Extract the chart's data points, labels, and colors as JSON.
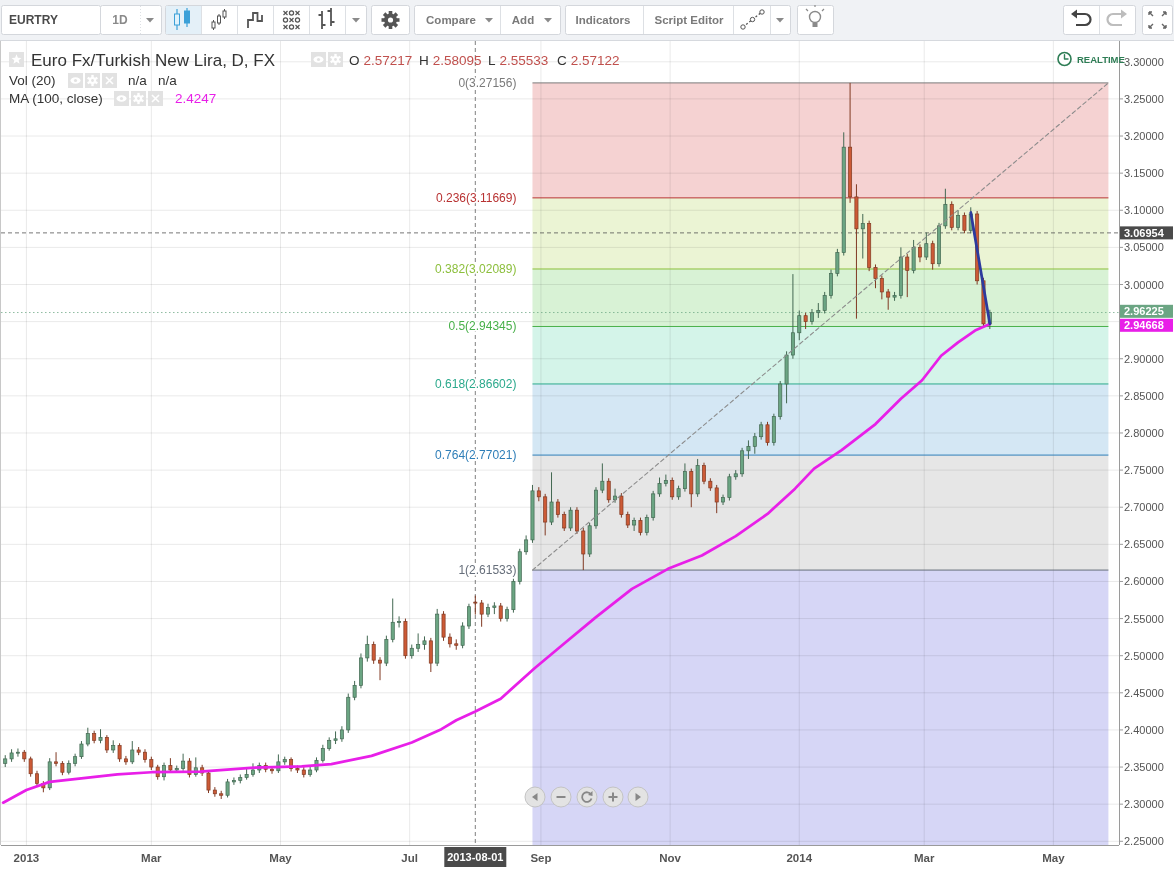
{
  "chart_data": {
    "type": "candlestick",
    "title": "Euro Fx/Turkish New Lira, D, FX",
    "x": [
      "2012-12-22",
      "2012-12-25",
      "2012-12-28",
      "2012-12-31",
      "2013-01-03",
      "2013-01-06",
      "2013-01-09",
      "2013-01-12",
      "2013-01-15",
      "2013-01-18",
      "2013-01-21",
      "2013-01-24",
      "2013-01-27",
      "2013-01-30",
      "2013-02-02",
      "2013-02-05",
      "2013-02-08",
      "2013-02-11",
      "2013-02-14",
      "2013-02-17",
      "2013-02-20",
      "2013-02-23",
      "2013-02-26",
      "2013-03-01",
      "2013-03-04",
      "2013-03-07",
      "2013-03-10",
      "2013-03-13",
      "2013-03-16",
      "2013-03-19",
      "2013-03-22",
      "2013-03-25",
      "2013-03-28",
      "2013-03-31",
      "2013-04-03",
      "2013-04-06",
      "2013-04-09",
      "2013-04-12",
      "2013-04-15",
      "2013-04-18",
      "2013-04-21",
      "2013-04-24",
      "2013-04-27",
      "2013-04-30",
      "2013-05-03",
      "2013-05-06",
      "2013-05-09",
      "2013-05-12",
      "2013-05-15",
      "2013-05-18",
      "2013-05-21",
      "2013-05-24",
      "2013-05-27",
      "2013-05-30",
      "2013-06-02",
      "2013-06-05",
      "2013-06-08",
      "2013-06-11",
      "2013-06-14",
      "2013-06-17",
      "2013-06-20",
      "2013-06-23",
      "2013-06-26",
      "2013-06-29",
      "2013-07-02",
      "2013-07-05",
      "2013-07-08",
      "2013-07-11",
      "2013-07-14",
      "2013-07-17",
      "2013-07-20",
      "2013-07-23",
      "2013-07-26",
      "2013-07-29",
      "2013-08-01",
      "2013-08-04",
      "2013-08-07",
      "2013-08-10",
      "2013-08-13",
      "2013-08-16",
      "2013-08-19",
      "2013-08-22",
      "2013-08-25",
      "2013-08-28",
      "2013-08-31",
      "2013-09-03",
      "2013-09-06",
      "2013-09-09",
      "2013-09-12",
      "2013-09-15",
      "2013-09-18",
      "2013-09-21",
      "2013-09-24",
      "2013-09-27",
      "2013-09-30",
      "2013-10-03",
      "2013-10-06",
      "2013-10-09",
      "2013-10-12",
      "2013-10-15",
      "2013-10-18",
      "2013-10-21",
      "2013-10-24",
      "2013-10-27",
      "2013-10-30",
      "2013-11-02",
      "2013-11-05",
      "2013-11-08",
      "2013-11-11",
      "2013-11-14",
      "2013-11-17",
      "2013-11-20",
      "2013-11-23",
      "2013-11-26",
      "2013-11-29",
      "2013-12-02",
      "2013-12-05",
      "2013-12-08",
      "2013-12-11",
      "2013-12-14",
      "2013-12-17",
      "2013-12-20",
      "2013-12-23",
      "2013-12-26",
      "2013-12-29",
      "2014-01-01",
      "2014-01-04",
      "2014-01-07",
      "2014-01-10",
      "2014-01-13",
      "2014-01-16",
      "2014-01-19",
      "2014-01-22",
      "2014-01-25",
      "2014-01-28",
      "2014-01-31",
      "2014-02-03",
      "2014-02-06",
      "2014-02-09",
      "2014-02-12",
      "2014-02-15",
      "2014-02-18",
      "2014-02-21",
      "2014-02-24",
      "2014-02-27",
      "2014-03-02",
      "2014-03-05",
      "2014-03-08",
      "2014-03-11",
      "2014-03-14",
      "2014-03-17",
      "2014-03-20",
      "2014-03-23",
      "2014-03-26",
      "2014-03-29",
      "2014-04-01"
    ],
    "ohlc": [
      [
        2.355,
        2.366,
        2.35,
        2.361
      ],
      [
        2.361,
        2.374,
        2.357,
        2.369
      ],
      [
        2.369,
        2.375,
        2.364,
        2.37
      ],
      [
        2.37,
        2.373,
        2.357,
        2.361
      ],
      [
        2.361,
        2.364,
        2.337,
        2.341
      ],
      [
        2.341,
        2.345,
        2.324,
        2.328
      ],
      [
        2.328,
        2.331,
        2.316,
        2.322
      ],
      [
        2.322,
        2.362,
        2.319,
        2.357
      ],
      [
        2.357,
        2.37,
        2.351,
        2.355
      ],
      [
        2.355,
        2.358,
        2.339,
        2.343
      ],
      [
        2.343,
        2.359,
        2.34,
        2.355
      ],
      [
        2.355,
        2.368,
        2.351,
        2.364
      ],
      [
        2.364,
        2.385,
        2.361,
        2.381
      ],
      [
        2.381,
        2.403,
        2.378,
        2.395
      ],
      [
        2.395,
        2.399,
        2.382,
        2.386
      ],
      [
        2.386,
        2.401,
        2.382,
        2.39
      ],
      [
        2.39,
        2.393,
        2.369,
        2.373
      ],
      [
        2.373,
        2.386,
        2.369,
        2.379
      ],
      [
        2.379,
        2.382,
        2.357,
        2.361
      ],
      [
        2.361,
        2.365,
        2.353,
        2.357
      ],
      [
        2.357,
        2.385,
        2.354,
        2.373
      ],
      [
        2.373,
        2.377,
        2.366,
        2.37
      ],
      [
        2.37,
        2.374,
        2.356,
        2.36
      ],
      [
        2.36,
        2.364,
        2.346,
        2.35
      ],
      [
        2.35,
        2.353,
        2.333,
        2.337
      ],
      [
        2.337,
        2.356,
        2.332,
        2.352
      ],
      [
        2.352,
        2.362,
        2.342,
        2.346
      ],
      [
        2.346,
        2.352,
        2.343,
        2.348
      ],
      [
        2.348,
        2.368,
        2.345,
        2.358
      ],
      [
        2.358,
        2.362,
        2.336,
        2.34
      ],
      [
        2.34,
        2.363,
        2.337,
        2.349
      ],
      [
        2.349,
        2.353,
        2.338,
        2.342
      ],
      [
        2.342,
        2.345,
        2.315,
        2.319
      ],
      [
        2.319,
        2.323,
        2.31,
        2.314
      ],
      [
        2.314,
        2.318,
        2.307,
        2.312
      ],
      [
        2.312,
        2.334,
        2.309,
        2.33
      ],
      [
        2.33,
        2.336,
        2.326,
        2.332
      ],
      [
        2.332,
        2.34,
        2.328,
        2.336
      ],
      [
        2.336,
        2.35,
        2.333,
        2.34
      ],
      [
        2.34,
        2.355,
        2.337,
        2.346
      ],
      [
        2.346,
        2.356,
        2.342,
        2.352
      ],
      [
        2.352,
        2.356,
        2.343,
        2.347
      ],
      [
        2.347,
        2.35,
        2.341,
        2.345
      ],
      [
        2.345,
        2.367,
        2.342,
        2.357
      ],
      [
        2.357,
        2.364,
        2.353,
        2.36
      ],
      [
        2.36,
        2.363,
        2.344,
        2.348
      ],
      [
        2.348,
        2.352,
        2.342,
        2.346
      ],
      [
        2.346,
        2.35,
        2.336,
        2.34
      ],
      [
        2.34,
        2.35,
        2.337,
        2.346
      ],
      [
        2.346,
        2.363,
        2.343,
        2.359
      ],
      [
        2.359,
        2.38,
        2.356,
        2.375
      ],
      [
        2.375,
        2.39,
        2.372,
        2.386
      ],
      [
        2.386,
        2.398,
        2.381,
        2.388
      ],
      [
        2.388,
        2.405,
        2.384,
        2.4
      ],
      [
        2.4,
        2.449,
        2.396,
        2.444
      ],
      [
        2.444,
        2.466,
        2.44,
        2.46
      ],
      [
        2.46,
        2.503,
        2.456,
        2.497
      ],
      [
        2.497,
        2.527,
        2.492,
        2.515
      ],
      [
        2.515,
        2.519,
        2.489,
        2.494
      ],
      [
        2.494,
        2.498,
        2.467,
        2.49
      ],
      [
        2.49,
        2.527,
        2.486,
        2.522
      ],
      [
        2.522,
        2.577,
        2.518,
        2.545
      ],
      [
        2.545,
        2.553,
        2.538,
        2.546
      ],
      [
        2.546,
        2.55,
        2.496,
        2.5
      ],
      [
        2.5,
        2.515,
        2.496,
        2.51
      ],
      [
        2.51,
        2.53,
        2.505,
        2.515
      ],
      [
        2.515,
        2.526,
        2.508,
        2.52
      ],
      [
        2.52,
        2.524,
        2.478,
        2.49
      ],
      [
        2.49,
        2.563,
        2.486,
        2.556
      ],
      [
        2.556,
        2.56,
        2.52,
        2.525
      ],
      [
        2.525,
        2.53,
        2.511,
        2.516
      ],
      [
        2.516,
        2.522,
        2.508,
        2.514
      ],
      [
        2.514,
        2.545,
        2.51,
        2.54
      ],
      [
        2.54,
        2.57,
        2.536,
        2.566
      ],
      [
        2.57217,
        2.58095,
        2.55533,
        2.57122
      ],
      [
        2.571,
        2.575,
        2.539,
        2.556
      ],
      [
        2.556,
        2.57,
        2.552,
        2.565
      ],
      [
        2.565,
        2.572,
        2.556,
        2.567
      ],
      [
        2.567,
        2.571,
        2.546,
        2.55
      ],
      [
        2.55,
        2.566,
        2.546,
        2.562
      ],
      [
        2.562,
        2.604,
        2.558,
        2.6
      ],
      [
        2.6,
        2.644,
        2.596,
        2.64
      ],
      [
        2.64,
        2.662,
        2.636,
        2.656
      ],
      [
        2.656,
        2.73,
        2.652,
        2.722
      ],
      [
        2.722,
        2.727,
        2.708,
        2.714
      ],
      [
        2.714,
        2.718,
        2.662,
        2.68
      ],
      [
        2.68,
        2.747,
        2.676,
        2.707
      ],
      [
        2.707,
        2.711,
        2.686,
        2.69
      ],
      [
        2.69,
        2.694,
        2.668,
        2.672
      ],
      [
        2.672,
        2.7,
        2.668,
        2.696
      ],
      [
        2.696,
        2.7,
        2.664,
        2.668
      ],
      [
        2.668,
        2.672,
        2.61533,
        2.637
      ],
      [
        2.637,
        2.679,
        2.633,
        2.675
      ],
      [
        2.675,
        2.727,
        2.671,
        2.723
      ],
      [
        2.723,
        2.759,
        2.719,
        2.735
      ],
      [
        2.735,
        2.739,
        2.706,
        2.71
      ],
      [
        2.71,
        2.725,
        2.706,
        2.715
      ],
      [
        2.715,
        2.719,
        2.686,
        2.69
      ],
      [
        2.69,
        2.694,
        2.672,
        2.676
      ],
      [
        2.676,
        2.686,
        2.668,
        2.682
      ],
      [
        2.682,
        2.686,
        2.662,
        2.666
      ],
      [
        2.666,
        2.69,
        2.662,
        2.686
      ],
      [
        2.686,
        2.722,
        2.682,
        2.718
      ],
      [
        2.718,
        2.74,
        2.714,
        2.732
      ],
      [
        2.732,
        2.744,
        2.728,
        2.736
      ],
      [
        2.736,
        2.74,
        2.71,
        2.714
      ],
      [
        2.714,
        2.729,
        2.71,
        2.725
      ],
      [
        2.725,
        2.759,
        2.721,
        2.748
      ],
      [
        2.748,
        2.752,
        2.7,
        2.718
      ],
      [
        2.718,
        2.765,
        2.714,
        2.756
      ],
      [
        2.756,
        2.76,
        2.731,
        2.735
      ],
      [
        2.735,
        2.739,
        2.722,
        2.726
      ],
      [
        2.726,
        2.73,
        2.692,
        2.707
      ],
      [
        2.707,
        2.717,
        2.703,
        2.713
      ],
      [
        2.713,
        2.745,
        2.709,
        2.741
      ],
      [
        2.741,
        2.75,
        2.737,
        2.745
      ],
      [
        2.745,
        2.78,
        2.741,
        2.776
      ],
      [
        2.776,
        2.79,
        2.765,
        2.782
      ],
      [
        2.782,
        2.8,
        2.772,
        2.795
      ],
      [
        2.795,
        2.815,
        2.791,
        2.811
      ],
      [
        2.811,
        2.815,
        2.783,
        2.787
      ],
      [
        2.787,
        2.826,
        2.783,
        2.822
      ],
      [
        2.822,
        2.87,
        2.818,
        2.866
      ],
      [
        2.866,
        2.91,
        2.84,
        2.905
      ],
      [
        2.905,
        3.014,
        2.9,
        2.935
      ],
      [
        2.935,
        2.965,
        2.925,
        2.958
      ],
      [
        2.958,
        2.962,
        2.94,
        2.95
      ],
      [
        2.95,
        2.967,
        2.946,
        2.962
      ],
      [
        2.962,
        2.975,
        2.955,
        2.965
      ],
      [
        2.965,
        2.99,
        2.961,
        2.985
      ],
      [
        2.985,
        3.02,
        2.981,
        3.015
      ],
      [
        3.015,
        3.048,
        3.011,
        3.043
      ],
      [
        3.043,
        3.205,
        3.039,
        3.185
      ],
      [
        3.185,
        3.27156,
        3.11,
        3.118
      ],
      [
        3.118,
        3.135,
        2.954,
        3.075
      ],
      [
        3.075,
        3.095,
        3.035,
        3.082
      ],
      [
        3.082,
        3.086,
        3.018,
        3.023
      ],
      [
        3.023,
        3.027,
        2.995,
        3.008
      ],
      [
        3.008,
        3.012,
        2.98,
        2.99
      ],
      [
        2.99,
        2.994,
        2.966,
        2.983
      ],
      [
        2.983,
        2.99,
        2.978,
        2.985
      ],
      [
        2.985,
        3.05,
        2.981,
        3.037
      ],
      [
        3.037,
        3.041,
        2.983,
        3.019
      ],
      [
        3.019,
        3.06,
        3.015,
        3.05
      ],
      [
        3.05,
        3.054,
        3.03,
        3.037
      ],
      [
        3.037,
        3.07,
        3.033,
        3.055
      ],
      [
        3.055,
        3.059,
        3.02,
        3.028
      ],
      [
        3.028,
        3.083,
        3.024,
        3.079
      ],
      [
        3.079,
        3.129,
        3.075,
        3.108
      ],
      [
        3.108,
        3.112,
        3.073,
        3.077
      ],
      [
        3.077,
        3.1,
        3.073,
        3.093
      ],
      [
        3.093,
        3.097,
        3.069,
        3.073
      ],
      [
        3.073,
        3.104,
        3.069,
        3.095
      ],
      [
        3.095,
        3.099,
        3.0,
        3.005
      ],
      [
        3.005,
        3.009,
        2.943,
        2.947
      ],
      [
        2.947,
        2.966,
        2.94,
        2.96225
      ]
    ],
    "colors": [
      "#6ba583",
      "#6ba583",
      "#6ba583",
      "#cc5a36",
      "#cc5a36",
      "#cc5a36",
      "#cc5a36",
      "#6ba583",
      "#cc5a36",
      "#cc5a36",
      "#6ba583",
      "#6ba583",
      "#6ba583",
      "#6ba583",
      "#cc5a36",
      "#6ba583",
      "#cc5a36",
      "#6ba583",
      "#cc5a36",
      "#cc5a36",
      "#6ba583",
      "#cc5a36",
      "#cc5a36",
      "#cc5a36",
      "#cc5a36",
      "#6ba583",
      "#cc5a36",
      "#6ba583",
      "#6ba583",
      "#cc5a36",
      "#6ba583",
      "#cc5a36",
      "#cc5a36",
      "#cc5a36",
      "#cc5a36",
      "#6ba583",
      "#6ba583",
      "#6ba583",
      "#6ba583",
      "#6ba583",
      "#6ba583",
      "#cc5a36",
      "#cc5a36",
      "#6ba583",
      "#6ba583",
      "#cc5a36",
      "#cc5a36",
      "#cc5a36",
      "#6ba583",
      "#6ba583",
      "#6ba583",
      "#6ba583",
      "#6ba583",
      "#6ba583",
      "#6ba583",
      "#6ba583",
      "#6ba583",
      "#6ba583",
      "#cc5a36",
      "#cc5a36",
      "#6ba583",
      "#6ba583",
      "#6ba583",
      "#cc5a36",
      "#6ba583",
      "#6ba583",
      "#6ba583",
      "#cc5a36",
      "#6ba583",
      "#cc5a36",
      "#cc5a36",
      "#cc5a36",
      "#6ba583",
      "#6ba583",
      "#cc5a36",
      "#cc5a36",
      "#6ba583",
      "#6ba583",
      "#cc5a36",
      "#6ba583",
      "#6ba583",
      "#6ba583",
      "#6ba583",
      "#6ba583",
      "#cc5a36",
      "#cc5a36",
      "#6ba583",
      "#cc5a36",
      "#cc5a36",
      "#6ba583",
      "#cc5a36",
      "#cc5a36",
      "#6ba583",
      "#6ba583",
      "#6ba583",
      "#cc5a36",
      "#6ba583",
      "#cc5a36",
      "#cc5a36",
      "#6ba583",
      "#cc5a36",
      "#6ba583",
      "#6ba583",
      "#6ba583",
      "#6ba583",
      "#cc5a36",
      "#6ba583",
      "#6ba583",
      "#cc5a36",
      "#6ba583",
      "#cc5a36",
      "#cc5a36",
      "#cc5a36",
      "#6ba583",
      "#6ba583",
      "#6ba583",
      "#6ba583",
      "#6ba583",
      "#6ba583",
      "#6ba583",
      "#cc5a36",
      "#6ba583",
      "#6ba583",
      "#6ba583",
      "#6ba583",
      "#6ba583",
      "#cc5a36",
      "#6ba583",
      "#6ba583",
      "#6ba583",
      "#6ba583",
      "#6ba583",
      "#6ba583",
      "#cc5a36",
      "#cc5a36",
      "#6ba583",
      "#cc5a36",
      "#cc5a36",
      "#cc5a36",
      "#cc5a36",
      "#6ba583",
      "#6ba583",
      "#cc5a36",
      "#6ba583",
      "#cc5a36",
      "#6ba583",
      "#cc5a36",
      "#6ba583",
      "#6ba583",
      "#cc5a36",
      "#6ba583",
      "#cc5a36",
      "#6ba583",
      "#cc5a36",
      "#cc5a36",
      "#6ba583"
    ],
    "series": [
      {
        "type": "line",
        "color": "#e81fe8",
        "x": [
          "2012-12-21",
          "2013-01-01",
          "2013-01-12",
          "2013-01-28",
          "2013-02-13",
          "2013-03-01",
          "2013-03-24",
          "2013-04-17",
          "2013-05-11",
          "2013-05-25",
          "2013-06-13",
          "2013-07-02",
          "2013-07-16",
          "2013-07-23",
          "2013-08-01",
          "2013-08-13",
          "2013-08-29",
          "2013-09-11",
          "2013-09-27",
          "2013-10-14",
          "2013-10-31",
          "2013-11-16",
          "2013-12-02",
          "2013-12-17",
          "2013-12-30",
          "2014-01-08",
          "2014-01-21",
          "2014-02-06",
          "2014-02-18",
          "2014-02-28",
          "2014-03-09",
          "2014-03-17",
          "2014-03-25",
          "2014-04-01"
        ],
        "values": [
          2.302,
          2.319,
          2.33,
          2.335,
          2.34,
          2.343,
          2.344,
          2.349,
          2.351,
          2.354,
          2.365,
          2.383,
          2.401,
          2.413,
          2.4247,
          2.442,
          2.483,
          2.514,
          2.552,
          2.59,
          2.617,
          2.635,
          2.661,
          2.691,
          2.725,
          2.752,
          2.777,
          2.812,
          2.846,
          2.871,
          2.904,
          2.922,
          2.938,
          2.94668
        ]
      },
      {
        "type": "line",
        "color": "#8c8c8c",
        "line_style": "dashed",
        "x": [
          "2013-08-28",
          "2014-05-27"
        ],
        "values": [
          2.61533,
          3.27156
        ]
      },
      {
        "type": "line",
        "color": "#2c3a9e",
        "x": [
          "2014-03-23",
          "2014-04-01"
        ],
        "values": [
          3.097,
          2.947
        ]
      }
    ],
    "xlim": [
      "2012-12-20",
      "2014-06-01"
    ],
    "ylim": [
      2.245,
      3.328
    ],
    "xticks": [
      {
        "value": "2013-01-01",
        "label": "2013"
      },
      {
        "value": "2013-03-01",
        "label": "Mar"
      },
      {
        "value": "2013-05-01",
        "label": "May"
      },
      {
        "value": "2013-07-01",
        "label": "Jul"
      },
      {
        "value": "2013-09-01",
        "label": "Sep"
      },
      {
        "value": "2013-11-01",
        "label": "Nov"
      },
      {
        "value": "2014-01-01",
        "label": "2014"
      },
      {
        "value": "2014-03-01",
        "label": "Mar"
      },
      {
        "value": "2014-05-01",
        "label": "May"
      }
    ],
    "yticks": [
      {
        "value": 2.25,
        "label": "2.25000"
      },
      {
        "value": 2.3,
        "label": "2.30000"
      },
      {
        "value": 2.35,
        "label": "2.35000"
      },
      {
        "value": 2.4,
        "label": "2.40000"
      },
      {
        "value": 2.45,
        "label": "2.45000"
      },
      {
        "value": 2.5,
        "label": "2.50000"
      },
      {
        "value": 2.55,
        "label": "2.55000"
      },
      {
        "value": 2.6,
        "label": "2.60000"
      },
      {
        "value": 2.65,
        "label": "2.65000"
      },
      {
        "value": 2.7,
        "label": "2.70000"
      },
      {
        "value": 2.75,
        "label": "2.75000"
      },
      {
        "value": 2.8,
        "label": "2.80000"
      },
      {
        "value": 2.85,
        "label": "2.85000"
      },
      {
        "value": 2.9,
        "label": "2.90000"
      },
      {
        "value": 2.95,
        "label": null
      },
      {
        "value": 3.0,
        "label": "3.00000"
      },
      {
        "value": 3.05,
        "label": "3.05000"
      },
      {
        "value": 3.1,
        "label": "3.10000"
      },
      {
        "value": 3.15,
        "label": "3.15000"
      },
      {
        "value": 3.2,
        "label": "3.20000"
      },
      {
        "value": 3.25,
        "label": "3.25000"
      },
      {
        "value": 3.3,
        "label": "3.30000"
      }
    ],
    "grid": true,
    "bands": [
      {
        "axis": "y",
        "from": 3.11669,
        "to": 3.27156,
        "color": "#f5d2d2"
      },
      {
        "axis": "y",
        "from": 3.02089,
        "to": 3.11669,
        "color": "#ebf4d4"
      },
      {
        "axis": "y",
        "from": 2.94345,
        "to": 3.02089,
        "color": "#d8f2d5"
      },
      {
        "axis": "y",
        "from": 2.86602,
        "to": 2.94345,
        "color": "#d4f4e9"
      },
      {
        "axis": "y",
        "from": 2.77021,
        "to": 2.86602,
        "color": "#d4e7f4"
      },
      {
        "axis": "y",
        "from": 2.61533,
        "to": 2.77021,
        "color": "#e6e6e6"
      },
      {
        "axis": "y",
        "from": 2.245,
        "to": 2.61533,
        "color": "#d6d6f6"
      }
    ],
    "ref_lines": [
      {
        "axis": "y",
        "value": 3.27156,
        "label": "0(3.27156)",
        "color": "#7a7a7a",
        "line_style": "solid"
      },
      {
        "axis": "y",
        "value": 3.11669,
        "label": "0.236(3.11669)",
        "color": "#b83232",
        "line_style": "solid"
      },
      {
        "axis": "y",
        "value": 3.02089,
        "label": "0.382(3.02089)",
        "color": "#8cbf3c",
        "line_style": "solid"
      },
      {
        "axis": "y",
        "value": 2.94345,
        "label": "0.5(2.94345)",
        "color": "#48b04a",
        "line_style": "solid"
      },
      {
        "axis": "y",
        "value": 2.86602,
        "label": "0.618(2.86602)",
        "color": "#2ba98c",
        "line_style": "solid"
      },
      {
        "axis": "y",
        "value": 2.77021,
        "label": "0.764(2.77021)",
        "color": "#2e7eb8",
        "line_style": "solid"
      },
      {
        "axis": "y",
        "value": 2.61533,
        "label": "1(2.61533)",
        "color": "#666e7a",
        "line_style": "solid"
      },
      {
        "axis": "y",
        "value": 3.06954,
        "label": "3.06954",
        "color": "#4a4a4a",
        "line_style": "dashed"
      },
      {
        "axis": "y",
        "value": 2.96225,
        "label": "2.96225",
        "color": "#6ba583",
        "line_style": "dotted"
      },
      {
        "axis": "x",
        "value": "2013-08-01",
        "label": "2013-08-01",
        "color": "#4a4a4a",
        "line_style": "dashed"
      }
    ],
    "annotations": [
      "EURTRY",
      "1D",
      "Compare",
      "Add",
      "Indicators",
      "Script Editor",
      "O 2.57217",
      "H 2.58095",
      "L 2.55533",
      "C 2.57122",
      "Vol (20)",
      "n/a",
      "n/a",
      "MA (100, close)",
      "2.4247",
      "REALTIME",
      "2.94668"
    ]
  }
}
